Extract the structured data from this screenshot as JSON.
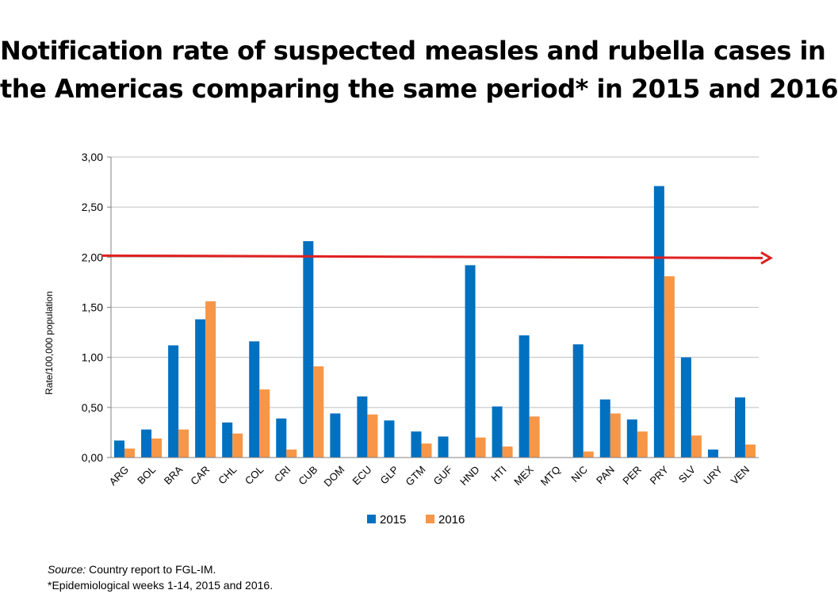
{
  "title": {
    "line1": "Notification rate of suspected measles and rubella cases in",
    "line2": "the Americas comparing the same period* in 2015 and 2016"
  },
  "footer": {
    "source_label": "Source:",
    "source_text": " Country report to FGL-IM.",
    "note": "*Epidemiological weeks 1-14, 2015 and 2016."
  },
  "colors": {
    "series_2015": "#0070C0",
    "series_2016": "#F79646",
    "threshold_line": "#E02020",
    "grid": "#BFBFBF"
  },
  "chart_data": {
    "type": "bar",
    "ylabel": "Rate/100,000 population",
    "xlabel": "",
    "ylim": [
      0,
      3
    ],
    "yticks": [
      0,
      0.5,
      1,
      1.5,
      2,
      2.5,
      3
    ],
    "ytick_labels": [
      "0,00",
      "0,50",
      "1,00",
      "1,50",
      "2,00",
      "2,50",
      "3,00"
    ],
    "grid": true,
    "legend_position": "bottom",
    "categories": [
      "ARG",
      "BOL",
      "BRA",
      "CAR",
      "CHL",
      "COL",
      "CRI",
      "CUB",
      "DOM",
      "ECU",
      "GLP",
      "GTM",
      "GUF",
      "HND",
      "HTI",
      "MEX",
      "MTQ",
      "NIC",
      "PAN",
      "PER",
      "PRY",
      "SLV",
      "URY",
      "VEN"
    ],
    "series": [
      {
        "name": "2015",
        "values": [
          0.17,
          0.28,
          1.12,
          1.38,
          0.35,
          1.16,
          0.39,
          2.16,
          0.44,
          0.61,
          0.37,
          0.26,
          0.21,
          1.92,
          0.51,
          1.22,
          0,
          1.13,
          0.58,
          0.38,
          2.71,
          1.0,
          0.08,
          0.6
        ]
      },
      {
        "name": "2016",
        "values": [
          0.09,
          0.19,
          0.28,
          1.56,
          0.24,
          0.68,
          0.08,
          0.91,
          0,
          0.43,
          0,
          0.14,
          0,
          0.2,
          0.11,
          0.41,
          0,
          0.06,
          0.44,
          0.26,
          1.81,
          0.22,
          0,
          0.13
        ]
      }
    ],
    "annotations": [
      {
        "type": "threshold-arrow",
        "value": 2.0
      }
    ]
  }
}
